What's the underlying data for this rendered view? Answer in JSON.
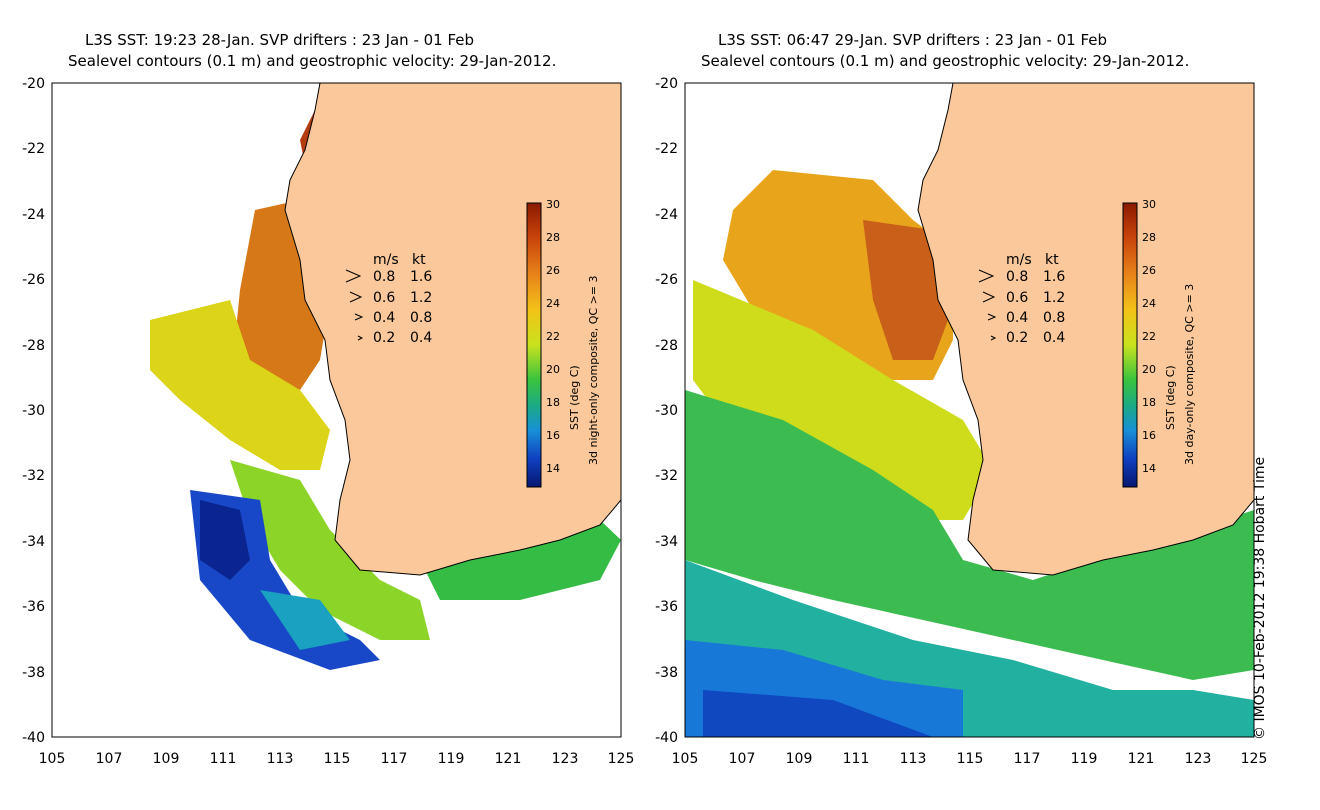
{
  "panels": [
    {
      "title_line1": "L3S SST: 19:23 28-Jan. SVP drifters : 23 Jan - 01 Feb",
      "title_line2": "Sealevel contours (0.1 m) and geostrophic velocity: 29-Jan-2012.",
      "colorbar_label1": "SST (deg C)",
      "colorbar_label2": "3d night-only composite, QC >= 3"
    },
    {
      "title_line1": "L3S SST: 06:47 29-Jan. SVP drifters : 23 Jan - 01 Feb",
      "title_line2": "Sealevel contours (0.1 m) and geostrophic velocity: 29-Jan-2012.",
      "colorbar_label1": "SST (deg C)",
      "colorbar_label2": "3d day-only composite, QC >= 3"
    }
  ],
  "axes": {
    "x_ticks": [
      "105",
      "107",
      "109",
      "111",
      "113",
      "115",
      "117",
      "119",
      "121",
      "123",
      "125"
    ],
    "y_ticks": [
      "-20",
      "-22",
      "-24",
      "-26",
      "-28",
      "-30",
      "-32",
      "-34",
      "-36",
      "-38",
      "-40"
    ]
  },
  "colorbar": {
    "ticks": [
      "30",
      "28",
      "26",
      "24",
      "22",
      "20",
      "18",
      "16",
      "14"
    ],
    "colors": [
      "#8a1a00",
      "#c8430a",
      "#e8821a",
      "#f2c418",
      "#c9e21e",
      "#3cc43c",
      "#1aa88a",
      "#1890d8",
      "#1040c0",
      "#061870"
    ]
  },
  "velocity_legend": {
    "header_ms": "m/s",
    "header_kt": "kt",
    "rows": [
      {
        "ms": "0.8",
        "kt": "1.6"
      },
      {
        "ms": "0.6",
        "kt": "1.2"
      },
      {
        "ms": "0.4",
        "kt": "0.8"
      },
      {
        "ms": "0.2",
        "kt": "0.4"
      }
    ]
  },
  "colors": {
    "land": "#fac89a",
    "background": "#ffffff"
  },
  "copyright": "© IMOS 10-Feb-2012 19:38 Hobart Time"
}
